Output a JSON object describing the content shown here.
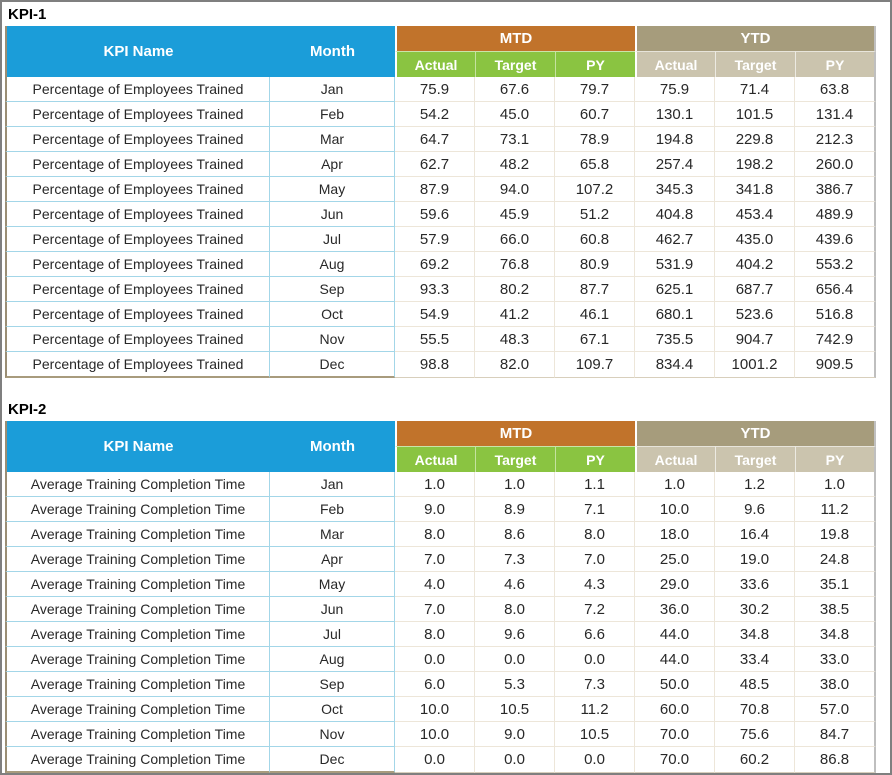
{
  "colors": {
    "header_blue": "#1b9dd9",
    "mtd_orange": "#c1732b",
    "mtd_sub_green": "#8ac441",
    "ytd_tan": "#a69c7c",
    "ytd_sub_tan": "#cbc4ae",
    "header_text": "#ffffff",
    "data_text": "#282828",
    "name_month_border": "#a3d6e8",
    "numeric_border": "#ede6d9",
    "table_left_border": "#9a8e75",
    "frame_border": "#7f7f7f"
  },
  "tables": [
    {
      "title": "KPI-1",
      "header": {
        "kpi_name": "KPI Name",
        "month": "Month",
        "mtd": "MTD",
        "ytd": "YTD",
        "sub": [
          "Actual",
          "Target",
          "PY",
          "Actual",
          "Target",
          "PY"
        ]
      },
      "rows": [
        [
          "Percentage of Employees Trained",
          "Jan",
          "75.9",
          "67.6",
          "79.7",
          "75.9",
          "71.4",
          "63.8"
        ],
        [
          "Percentage of Employees Trained",
          "Feb",
          "54.2",
          "45.0",
          "60.7",
          "130.1",
          "101.5",
          "131.4"
        ],
        [
          "Percentage of Employees Trained",
          "Mar",
          "64.7",
          "73.1",
          "78.9",
          "194.8",
          "229.8",
          "212.3"
        ],
        [
          "Percentage of Employees Trained",
          "Apr",
          "62.7",
          "48.2",
          "65.8",
          "257.4",
          "198.2",
          "260.0"
        ],
        [
          "Percentage of Employees Trained",
          "May",
          "87.9",
          "94.0",
          "107.2",
          "345.3",
          "341.8",
          "386.7"
        ],
        [
          "Percentage of Employees Trained",
          "Jun",
          "59.6",
          "45.9",
          "51.2",
          "404.8",
          "453.4",
          "489.9"
        ],
        [
          "Percentage of Employees Trained",
          "Jul",
          "57.9",
          "66.0",
          "60.8",
          "462.7",
          "435.0",
          "439.6"
        ],
        [
          "Percentage of Employees Trained",
          "Aug",
          "69.2",
          "76.8",
          "80.9",
          "531.9",
          "404.2",
          "553.2"
        ],
        [
          "Percentage of Employees Trained",
          "Sep",
          "93.3",
          "80.2",
          "87.7",
          "625.1",
          "687.7",
          "656.4"
        ],
        [
          "Percentage of Employees Trained",
          "Oct",
          "54.9",
          "41.2",
          "46.1",
          "680.1",
          "523.6",
          "516.8"
        ],
        [
          "Percentage of Employees Trained",
          "Nov",
          "55.5",
          "48.3",
          "67.1",
          "735.5",
          "904.7",
          "742.9"
        ],
        [
          "Percentage of Employees Trained",
          "Dec",
          "98.8",
          "82.0",
          "109.7",
          "834.4",
          "1001.2",
          "909.5"
        ]
      ]
    },
    {
      "title": "KPI-2",
      "header": {
        "kpi_name": "KPI Name",
        "month": "Month",
        "mtd": "MTD",
        "ytd": "YTD",
        "sub": [
          "Actual",
          "Target",
          "PY",
          "Actual",
          "Target",
          "PY"
        ]
      },
      "rows": [
        [
          "Average Training Completion Time",
          "Jan",
          "1.0",
          "1.0",
          "1.1",
          "1.0",
          "1.2",
          "1.0"
        ],
        [
          "Average Training Completion Time",
          "Feb",
          "9.0",
          "8.9",
          "7.1",
          "10.0",
          "9.6",
          "11.2"
        ],
        [
          "Average Training Completion Time",
          "Mar",
          "8.0",
          "8.6",
          "8.0",
          "18.0",
          "16.4",
          "19.8"
        ],
        [
          "Average Training Completion Time",
          "Apr",
          "7.0",
          "7.3",
          "7.0",
          "25.0",
          "19.0",
          "24.8"
        ],
        [
          "Average Training Completion Time",
          "May",
          "4.0",
          "4.6",
          "4.3",
          "29.0",
          "33.6",
          "35.1"
        ],
        [
          "Average Training Completion Time",
          "Jun",
          "7.0",
          "8.0",
          "7.2",
          "36.0",
          "30.2",
          "38.5"
        ],
        [
          "Average Training Completion Time",
          "Jul",
          "8.0",
          "9.6",
          "6.6",
          "44.0",
          "34.8",
          "34.8"
        ],
        [
          "Average Training Completion Time",
          "Aug",
          "0.0",
          "0.0",
          "0.0",
          "44.0",
          "33.4",
          "33.0"
        ],
        [
          "Average Training Completion Time",
          "Sep",
          "6.0",
          "5.3",
          "7.3",
          "50.0",
          "48.5",
          "38.0"
        ],
        [
          "Average Training Completion Time",
          "Oct",
          "10.0",
          "10.5",
          "11.2",
          "60.0",
          "70.8",
          "57.0"
        ],
        [
          "Average Training Completion Time",
          "Nov",
          "10.0",
          "9.0",
          "10.5",
          "70.0",
          "75.6",
          "84.7"
        ],
        [
          "Average Training Completion Time",
          "Dec",
          "0.0",
          "0.0",
          "0.0",
          "70.0",
          "60.2",
          "86.8"
        ]
      ]
    }
  ]
}
